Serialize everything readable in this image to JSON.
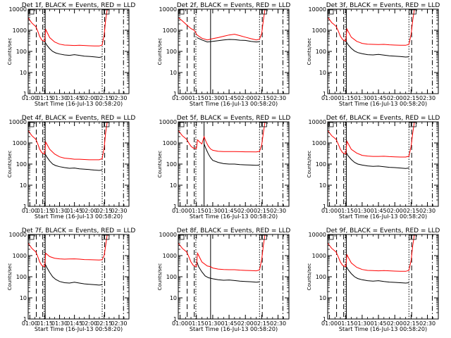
{
  "colors": {
    "events": "#000000",
    "lld": "#ff0000",
    "axes": "#000000",
    "background": "#ffffff"
  },
  "chart_data": {
    "type": "line",
    "layout": "3x3 grid of detector panels",
    "xlabel": "Start Time (16-Jul-13 00:58:20)",
    "ylabel": "Counts/sec",
    "yscale": "log",
    "ylim": [
      1,
      10000
    ],
    "y_tick_labels": [
      "1",
      "10",
      "100",
      "1000",
      "10000"
    ],
    "x_tick_labels": [
      "01:00",
      "01:15",
      "01:30",
      "01:45",
      "02:00",
      "02:15",
      "02:30"
    ],
    "x_tick_minutes": [
      60,
      75,
      90,
      105,
      120,
      135,
      150
    ],
    "xlim_minutes": [
      58.33,
      160
    ],
    "vertical_markers": [
      {
        "style": "dashed",
        "minute": 66.5
      },
      {
        "style": "dashed",
        "minute": 73
      },
      {
        "style": "dotted",
        "minute": 74.5
      },
      {
        "style": "dotted",
        "minute": 133
      },
      {
        "style": "dashed",
        "minute": 135.5
      },
      {
        "style": "dash-dot",
        "minute": 154.5
      },
      {
        "style": "solid",
        "minute_by_panel": [
          75.5,
          88,
          75.5,
          75.5,
          82,
          75.5,
          75.5,
          88,
          75.5
        ]
      }
    ],
    "panels": [
      {
        "title": "Det 1f, BLACK = Events, RED = LLD",
        "series": [
          {
            "name": "Events",
            "x": [
              75.5,
              77,
              80,
              83,
              86,
              90,
              95,
              100,
              105,
              110,
              115,
              120,
              125,
              130,
              133
            ],
            "y": [
              270,
              200,
              135,
              100,
              85,
              75,
              68,
              65,
              70,
              65,
              60,
              58,
              55,
              52,
              55
            ]
          },
          {
            "name": "LLD",
            "x": [
              58.33,
              60,
              62,
              64,
              66,
              68,
              70,
              72,
              73.5,
              75,
              76,
              80,
              85,
              90,
              95,
              100,
              105,
              110,
              115,
              120,
              125,
              130,
              133,
              135,
              136.5,
              138,
              140,
              142
            ],
            "y": [
              4000,
              3000,
              2200,
              1800,
              1500,
              900,
              500,
              350,
              320,
              300,
              1100,
              450,
              280,
              220,
              200,
              195,
              190,
              195,
              190,
              185,
              180,
              180,
              200,
              600,
              3000,
              9500,
              11000,
              11000
            ]
          }
        ]
      },
      {
        "title": "Det 2f, BLACK = Events, RED = LLD",
        "series": [
          {
            "name": "Events",
            "x": [
              75.5,
              80,
              85,
              90,
              95,
              100,
              105,
              110,
              115,
              120,
              125,
              130,
              133
            ],
            "y": [
              450,
              350,
              280,
              300,
              320,
              350,
              370,
              360,
              340,
              330,
              300,
              280,
              290
            ]
          },
          {
            "name": "LLD",
            "x": [
              58.33,
              62,
              66,
              70,
              73,
              75.5,
              80,
              85,
              90,
              95,
              100,
              105,
              110,
              115,
              120,
              125,
              130,
              133,
              135,
              136.5,
              138,
              140,
              142
            ],
            "y": [
              4000,
              2800,
              1800,
              1200,
              1000,
              600,
              420,
              350,
              400,
              450,
              520,
              600,
              650,
              560,
              470,
              400,
              350,
              380,
              700,
              3000,
              9500,
              11000,
              11000
            ]
          }
        ]
      },
      {
        "title": "Det 3f, BLACK = Events, RED = LLD",
        "series": [
          {
            "name": "Events",
            "x": [
              75.5,
              77,
              80,
              83,
              86,
              90,
              95,
              100,
              105,
              110,
              115,
              120,
              125,
              130,
              133
            ],
            "y": [
              280,
              210,
              140,
              105,
              88,
              78,
              70,
              68,
              72,
              67,
              62,
              60,
              57,
              54,
              56
            ]
          },
          {
            "name": "LLD",
            "x": [
              58.33,
              60,
              62,
              64,
              66,
              68,
              70,
              72,
              73.5,
              75,
              76,
              80,
              85,
              90,
              95,
              100,
              105,
              110,
              115,
              120,
              125,
              130,
              133,
              135,
              136.5,
              138,
              140,
              142
            ],
            "y": [
              4200,
              3200,
              2300,
              1900,
              1550,
              950,
              520,
              370,
              330,
              310,
              1150,
              470,
              300,
              240,
              220,
              215,
              210,
              215,
              205,
              200,
              195,
              195,
              215,
              650,
              3000,
              9500,
              11000,
              11000
            ]
          }
        ]
      },
      {
        "title": "Det 4f, BLACK = Events, RED = LLD",
        "series": [
          {
            "name": "Events",
            "x": [
              75.5,
              77,
              80,
              83,
              86,
              90,
              95,
              100,
              105,
              110,
              115,
              120,
              125,
              130,
              133
            ],
            "y": [
              300,
              220,
              140,
              100,
              85,
              75,
              68,
              63,
              65,
              60,
              57,
              55,
              52,
              50,
              52
            ]
          },
          {
            "name": "LLD",
            "x": [
              58.33,
              60,
              62,
              64,
              66,
              68,
              70,
              72,
              73.5,
              75,
              76,
              80,
              85,
              90,
              95,
              100,
              105,
              110,
              115,
              120,
              125,
              130,
              133,
              135,
              136.5,
              138,
              140,
              142
            ],
            "y": [
              4000,
              3000,
              2200,
              1800,
              1500,
              900,
              500,
              350,
              320,
              300,
              1100,
              500,
              300,
              220,
              190,
              180,
              170,
              170,
              165,
              160,
              160,
              160,
              180,
              600,
              3000,
              9500,
              11000,
              11000
            ]
          }
        ]
      },
      {
        "title": "Det 5f, BLACK = Events, RED = LLD",
        "series": [
          {
            "name": "Events",
            "x": [
              82,
              84,
              86,
              88,
              90,
              95,
              100,
              105,
              110,
              115,
              120,
              125,
              130,
              133
            ],
            "y": [
              900,
              500,
              300,
              200,
              150,
              120,
              105,
              100,
              100,
              95,
              92,
              90,
              88,
              90
            ]
          },
          {
            "name": "LLD",
            "x": [
              58.33,
              60,
              62,
              64,
              66,
              68,
              70,
              72,
              73.5,
              75,
              76,
              78,
              80,
              82,
              84,
              86,
              88,
              90,
              95,
              100,
              105,
              110,
              115,
              120,
              125,
              130,
              133,
              135,
              136.5,
              138,
              140,
              142
            ],
            "y": [
              4000,
              3000,
              2200,
              1800,
              1500,
              1000,
              700,
              580,
              560,
              550,
              1400,
              1100,
              900,
              2000,
              1100,
              700,
              520,
              450,
              400,
              390,
              390,
              390,
              385,
              380,
              380,
              375,
              400,
              800,
              3000,
              9500,
              11000,
              11000
            ]
          }
        ]
      },
      {
        "title": "Det 6f, BLACK = Events, RED = LLD",
        "series": [
          {
            "name": "Events",
            "x": [
              75.5,
              77,
              80,
              83,
              86,
              90,
              95,
              100,
              105,
              110,
              115,
              120,
              125,
              130,
              133
            ],
            "y": [
              350,
              250,
              165,
              120,
              100,
              90,
              82,
              78,
              80,
              75,
              70,
              68,
              65,
              62,
              65
            ]
          },
          {
            "name": "LLD",
            "x": [
              58.33,
              60,
              62,
              64,
              66,
              68,
              70,
              72,
              73.5,
              75,
              76,
              80,
              85,
              90,
              95,
              100,
              105,
              110,
              115,
              120,
              125,
              130,
              133,
              135,
              136.5,
              138,
              140,
              142
            ],
            "y": [
              4000,
              3000,
              2200,
              1800,
              1500,
              900,
              500,
              350,
              320,
              300,
              1200,
              500,
              330,
              260,
              240,
              230,
              230,
              235,
              225,
              220,
              215,
              215,
              235,
              700,
              3000,
              9500,
              11000,
              11000
            ]
          }
        ]
      },
      {
        "title": "Det 7f, BLACK = Events, RED = LLD",
        "series": [
          {
            "name": "Events",
            "x": [
              75.5,
              77,
              80,
              83,
              86,
              90,
              95,
              100,
              105,
              110,
              115,
              120,
              125,
              130,
              133
            ],
            "y": [
              400,
              280,
              160,
              100,
              75,
              60,
              52,
              50,
              55,
              50,
              46,
              44,
              42,
              40,
              42
            ]
          },
          {
            "name": "LLD",
            "x": [
              58.33,
              60,
              62,
              64,
              66,
              68,
              70,
              72,
              73.5,
              75,
              76,
              80,
              85,
              90,
              95,
              100,
              105,
              110,
              115,
              120,
              125,
              130,
              133,
              135,
              136.5,
              138,
              140,
              142
            ],
            "y": [
              4000,
              3000,
              2200,
              1800,
              1500,
              900,
              500,
              350,
              320,
              300,
              1300,
              900,
              750,
              700,
              680,
              690,
              700,
              680,
              650,
              640,
              630,
              620,
              640,
              1000,
              3000,
              9500,
              11000,
              11000
            ]
          }
        ]
      },
      {
        "title": "Det 8f, BLACK = Events, RED = LLD",
        "series": [
          {
            "name": "Events",
            "x": [
              75.5,
              77,
              80,
              83,
              86,
              90,
              95,
              100,
              105,
              110,
              115,
              120,
              125,
              130,
              133
            ],
            "y": [
              500,
              300,
              170,
              110,
              90,
              80,
              72,
              68,
              70,
              66,
              62,
              60,
              58,
              55,
              57
            ]
          },
          {
            "name": "LLD",
            "x": [
              58.33,
              60,
              62,
              64,
              66,
              68,
              70,
              72,
              73.5,
              75,
              76,
              80,
              85,
              88,
              90,
              95,
              100,
              105,
              110,
              115,
              120,
              125,
              130,
              133,
              135,
              136.5,
              138,
              140,
              142
            ],
            "y": [
              4000,
              3000,
              2200,
              1800,
              1500,
              900,
              500,
              350,
              320,
              300,
              1300,
              500,
              320,
              300,
              260,
              230,
              220,
              215,
              215,
              205,
              200,
              195,
              190,
              210,
              650,
              3000,
              9500,
              11000,
              11000
            ]
          }
        ]
      },
      {
        "title": "Det 9f, BLACK = Events, RED = LLD",
        "series": [
          {
            "name": "Events",
            "x": [
              75.5,
              77,
              80,
              83,
              86,
              90,
              95,
              100,
              105,
              110,
              115,
              120,
              125,
              130,
              133
            ],
            "y": [
              300,
              220,
              140,
              100,
              82,
              72,
              65,
              62,
              65,
              60,
              56,
              54,
              52,
              50,
              52
            ]
          },
          {
            "name": "LLD",
            "x": [
              58.33,
              60,
              62,
              64,
              66,
              68,
              70,
              72,
              73.5,
              75,
              76,
              80,
              85,
              90,
              95,
              100,
              105,
              110,
              115,
              120,
              125,
              130,
              133,
              135,
              136.5,
              138,
              140,
              142
            ],
            "y": [
              4000,
              3000,
              2200,
              1800,
              1500,
              900,
              500,
              350,
              320,
              300,
              1100,
              450,
              280,
              220,
              200,
              195,
              190,
              195,
              190,
              185,
              180,
              180,
              200,
              600,
              3000,
              9500,
              11000,
              11000
            ]
          }
        ]
      }
    ]
  }
}
